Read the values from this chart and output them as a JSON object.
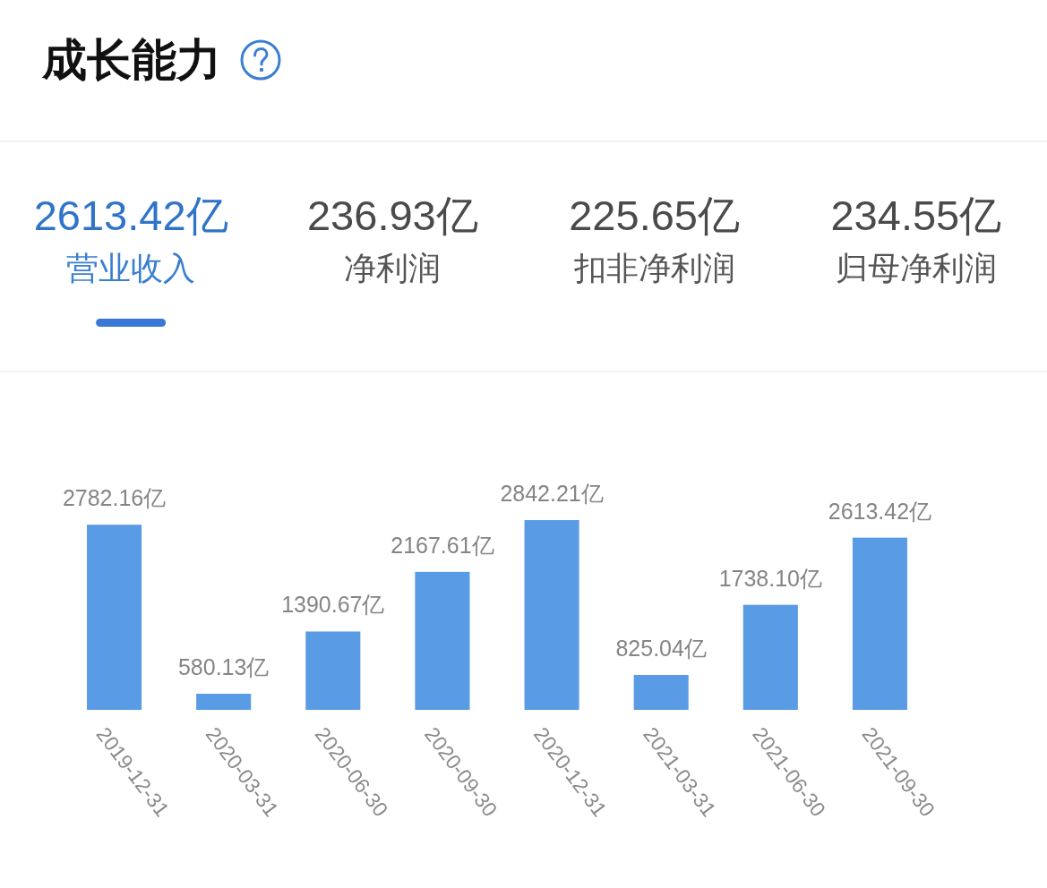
{
  "chart_data": [
    {
      "type": "other",
      "title": "成长能力",
      "annotations": [
        "2613.42亿",
        "营业收入",
        "236.93亿",
        "净利润",
        "225.65亿",
        "扣非净利润",
        "234.55亿",
        "归母净利润"
      ]
    },
    {
      "type": "bar",
      "categories": [
        "2019-12-31",
        "2020-03-31",
        "2020-06-30",
        "2020-09-30",
        "2020-12-31",
        "2021-03-31",
        "2021-06-30",
        "2021-09-30"
      ],
      "values": [
        2782.16,
        580.13,
        1390.67,
        2167.61,
        2842.21,
        825.04,
        1738.1,
        2613.42
      ],
      "value_labels": [
        "2782.16亿",
        "580.13亿",
        "1390.67亿",
        "2167.61亿",
        "2842.21亿",
        "825.04亿",
        "1738.10亿",
        "2613.42亿"
      ],
      "color": "#5a9be6",
      "ylim": [
        370,
        2842.21
      ],
      "tick_labels": "x"
    }
  ]
}
